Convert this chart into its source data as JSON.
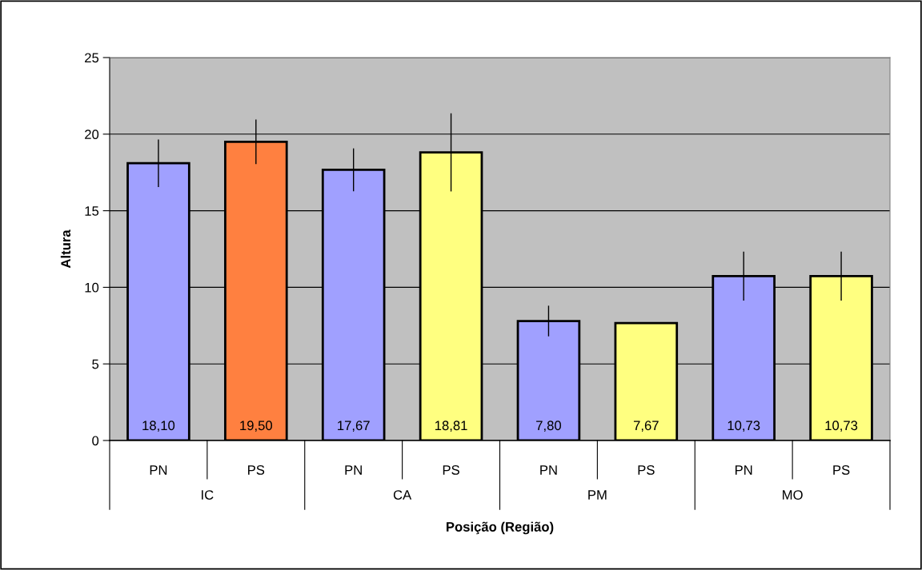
{
  "chart_data": {
    "type": "bar",
    "xlabel": "Posição (Região)",
    "ylabel": "Altura",
    "categories": [
      "PN",
      "PS",
      "PN",
      "PS",
      "PN",
      "PS",
      "PN",
      "PS"
    ],
    "values": [
      18.1,
      19.5,
      17.67,
      18.81,
      7.8,
      7.67,
      10.73,
      10.73
    ],
    "value_labels": [
      "18,10",
      "19,50",
      "17,67",
      "18,81",
      "7,80",
      "7,67",
      "10,73",
      "10,73"
    ],
    "errors": [
      1.55,
      1.45,
      1.4,
      2.55,
      1.0,
      0.05,
      1.6,
      1.6
    ],
    "colors": [
      "#a0a0ff",
      "#ff8040",
      "#a0a0ff",
      "#ffff80",
      "#a0a0ff",
      "#ffff80",
      "#a0a0ff",
      "#ffff80"
    ],
    "annotations": [
      "IC",
      "CA",
      "PM",
      "MO"
    ],
    "ylim": [
      0,
      25
    ],
    "yticks": [
      0,
      5,
      10,
      15,
      20,
      25
    ],
    "grid": "y"
  }
}
